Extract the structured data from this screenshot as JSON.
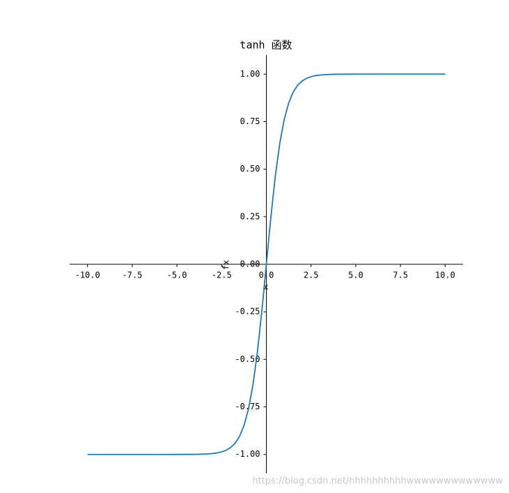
{
  "chart_data": {
    "type": "line",
    "title": "tanh 函数",
    "xlabel": "x",
    "ylabel": "fx",
    "x": [
      -10,
      -9,
      -8,
      -7,
      -6,
      -5,
      -4,
      -3.75,
      -3.5,
      -3.25,
      -3,
      -2.75,
      -2.5,
      -2.25,
      -2,
      -1.75,
      -1.5,
      -1.25,
      -1,
      -0.75,
      -0.5,
      -0.25,
      0,
      0.25,
      0.5,
      0.75,
      1,
      1.25,
      1.5,
      1.75,
      2,
      2.25,
      2.5,
      2.75,
      3,
      3.25,
      3.5,
      3.75,
      4,
      5,
      6,
      7,
      8,
      9,
      10
    ],
    "series": [
      {
        "color": "#1f77b4",
        "values": [
          -1,
          -1,
          -1,
          -1,
          -1,
          -0.9999,
          -0.9993,
          -0.9989,
          -0.9982,
          -0.997,
          -0.9951,
          -0.9919,
          -0.9866,
          -0.978,
          -0.964,
          -0.9414,
          -0.9051,
          -0.8483,
          -0.7616,
          -0.6351,
          -0.4621,
          -0.2449,
          0,
          0.2449,
          0.4621,
          0.6351,
          0.7616,
          0.8483,
          0.9051,
          0.9414,
          0.964,
          0.978,
          0.9866,
          0.9919,
          0.9951,
          0.997,
          0.9982,
          0.9989,
          0.9993,
          0.9999,
          1,
          1,
          1,
          1,
          1
        ]
      }
    ],
    "xlim": [
      -11,
      11
    ],
    "ylim": [
      -1.1,
      1.1
    ],
    "xticks": [
      {
        "value": -10,
        "label": "-10.0"
      },
      {
        "value": -7.5,
        "label": "-7.5"
      },
      {
        "value": -5,
        "label": "-5.0"
      },
      {
        "value": -2.5,
        "label": "-2.5"
      },
      {
        "value": 0,
        "label": "0.0"
      },
      {
        "value": 2.5,
        "label": "2.5"
      },
      {
        "value": 5,
        "label": "5.0"
      },
      {
        "value": 7.5,
        "label": "7.5"
      },
      {
        "value": 10,
        "label": "10.0"
      }
    ],
    "yticks": [
      {
        "value": -1,
        "label": "-1.00"
      },
      {
        "value": -0.75,
        "label": "-0.75"
      },
      {
        "value": -0.5,
        "label": "-0.50"
      },
      {
        "value": -0.25,
        "label": "-0.25"
      },
      {
        "value": 0,
        "label": "0.00"
      },
      {
        "value": 0.25,
        "label": "0.25"
      },
      {
        "value": 0.5,
        "label": "0.50"
      },
      {
        "value": 0.75,
        "label": "0.75"
      },
      {
        "value": 1,
        "label": "1.00"
      }
    ],
    "grid": false,
    "watermark": "https://blog.csdn.net/hhhhhhhhhhwwwwwwwwwwwww"
  }
}
